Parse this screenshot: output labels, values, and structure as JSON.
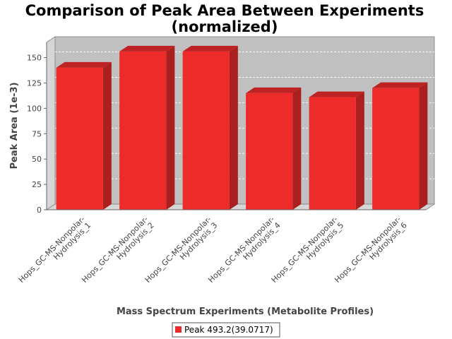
{
  "chart_data": {
    "type": "bar",
    "title_lines": [
      "Comparison of Peak Area Between Experiments",
      "(normalized)"
    ],
    "xlabel": "Mass Spectrum Experiments (Metabolite Profiles)",
    "ylabel": "Peak Area (1e-3)",
    "ylim": [
      0,
      165
    ],
    "yticks": [
      0,
      25,
      50,
      75,
      100,
      125,
      150
    ],
    "grid": true,
    "legend_position": "bottom",
    "categories": [
      [
        "Hops_GC-MS-Nonpolar-",
        "Hydrolysis_1"
      ],
      [
        "Hops_GC-MS-Nonpolar-",
        "Hydrolysis_2"
      ],
      [
        "Hops_GC-MS-Nonpolar-",
        "Hydrolysis_3"
      ],
      [
        "Hops_GC-MS-Nonpolar-",
        "Hydrolysis_4"
      ],
      [
        "Hops_GC-MS-Nonpolar-",
        "Hydrolysis_5"
      ],
      [
        "Hops_GC-MS-Nonpolar-",
        "Hydrolysis_6"
      ]
    ],
    "series": [
      {
        "name": "Peak 493.2(39.0717)",
        "color": "#ee2b2b",
        "values": [
          140,
          156,
          156,
          115,
          111,
          120
        ]
      }
    ],
    "plot_background": "#c0c0c0"
  }
}
